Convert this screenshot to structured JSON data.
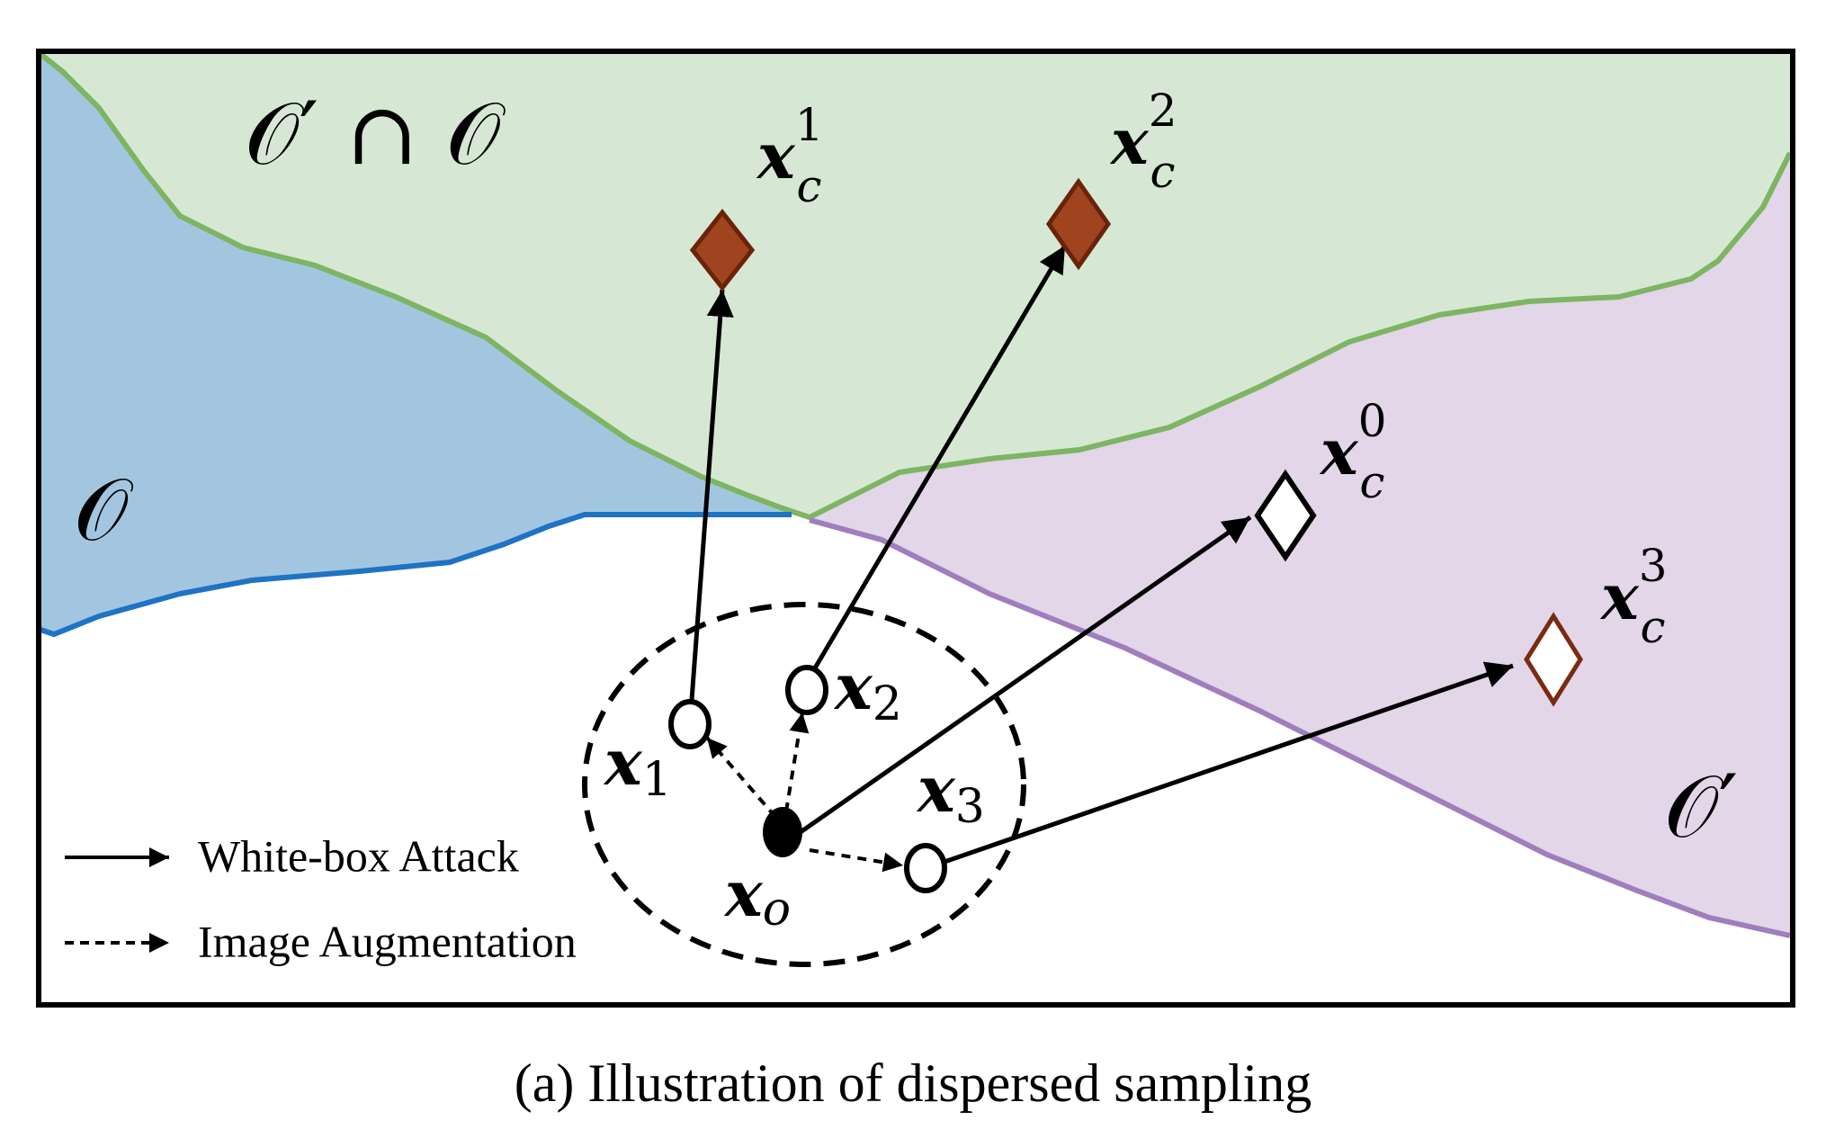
{
  "regions": {
    "intersection": {
      "label": "𝒪′ ∩ 𝒪",
      "color": "#d6e8d4",
      "border": "#7db563"
    },
    "o": {
      "label": "𝒪",
      "color": "#a3c6e0",
      "border": "#1f73c4"
    },
    "o_prime": {
      "label": "𝒪′",
      "color": "#e2d6e8",
      "border": "#a07ebd"
    }
  },
  "points": {
    "xo": {
      "base": "x",
      "sub": "o"
    },
    "x1": {
      "base": "x",
      "sub": "1"
    },
    "x2": {
      "base": "x",
      "sub": "2"
    },
    "x3": {
      "base": "x",
      "sub": "3"
    }
  },
  "targets": {
    "xc0": {
      "base": "x",
      "sub": "c",
      "sup": "0",
      "fill": "#ffffff",
      "stroke": "#000000"
    },
    "xc1": {
      "base": "x",
      "sub": "c",
      "sup": "1",
      "fill": "#a0441f",
      "stroke": "#6a230a"
    },
    "xc2": {
      "base": "x",
      "sub": "c",
      "sup": "2",
      "fill": "#a0441f",
      "stroke": "#6a230a"
    },
    "xc3": {
      "base": "x",
      "sub": "c",
      "sup": "3",
      "fill": "#ffffff",
      "stroke": "#7a2a10"
    }
  },
  "legend": {
    "white_box": "White-box Attack",
    "augmentation": "Image Augmentation"
  },
  "caption": "(a) Illustration of dispersed sampling"
}
